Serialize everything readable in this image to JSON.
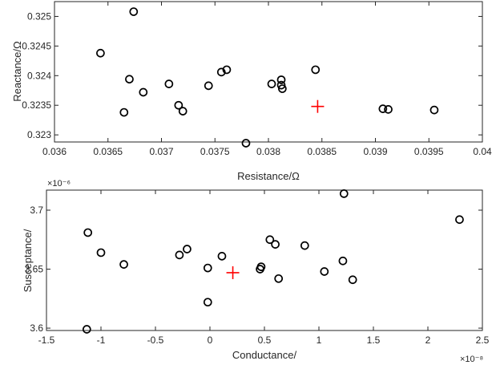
{
  "chart_data": [
    {
      "type": "scatter",
      "xlabel": "Resistance/Ω",
      "ylabel": "Reactance/Ω",
      "xlim": [
        0.036,
        0.04
      ],
      "ylim": [
        0.32288,
        0.32525
      ],
      "x_ticks": [
        "0.036",
        "0.0365",
        "0.037",
        "0.0375",
        "0.038",
        "0.0385",
        "0.039",
        "0.0395",
        "0.04"
      ],
      "y_ticks": [
        "0.323",
        "0.3235",
        "0.324",
        "0.3245",
        "0.325"
      ],
      "series": [
        {
          "marker": "circle",
          "color": "#000000",
          "points": [
            [
              0.03674,
              0.32508
            ],
            [
              0.03643,
              0.32438
            ],
            [
              0.0367,
              0.32394
            ],
            [
              0.03683,
              0.32372
            ],
            [
              0.03707,
              0.32386
            ],
            [
              0.03716,
              0.3235
            ],
            [
              0.0372,
              0.3234
            ],
            [
              0.03665,
              0.32338
            ],
            [
              0.03744,
              0.32383
            ],
            [
              0.03756,
              0.32406
            ],
            [
              0.03761,
              0.3241
            ],
            [
              0.03779,
              0.32286
            ],
            [
              0.03803,
              0.32386
            ],
            [
              0.03812,
              0.32393
            ],
            [
              0.03812,
              0.32384
            ],
            [
              0.03813,
              0.32378
            ],
            [
              0.03844,
              0.3241
            ],
            [
              0.03907,
              0.32344
            ],
            [
              0.03912,
              0.32343
            ],
            [
              0.03955,
              0.32342
            ]
          ]
        },
        {
          "marker": "plus",
          "color": "#ff0000",
          "points": [
            [
              0.03846,
              0.32348
            ]
          ]
        }
      ]
    },
    {
      "type": "scatter",
      "xlabel": "Conductance/",
      "ylabel": "Susceptance/",
      "x_exponent": "×10⁻⁸",
      "y_exponent": "×10⁻⁶",
      "xlim": [
        -1.5,
        2.5
      ],
      "ylim": [
        3.598,
        3.717
      ],
      "x_ticks": [
        "-1.5",
        "-1",
        "-0.5",
        "0",
        "0.5",
        "1",
        "1.5",
        "2",
        "2.5"
      ],
      "y_ticks": [
        "3.6",
        "3.65",
        "3.7"
      ],
      "series": [
        {
          "marker": "circle",
          "color": "#000000",
          "points": [
            [
              -1.12,
              3.681
            ],
            [
              -1.0,
              3.664
            ],
            [
              -0.79,
              3.654
            ],
            [
              -0.28,
              3.662
            ],
            [
              -0.21,
              3.667
            ],
            [
              -0.02,
              3.651
            ],
            [
              -0.02,
              3.622
            ],
            [
              0.11,
              3.661
            ],
            [
              0.46,
              3.65
            ],
            [
              0.47,
              3.652
            ],
            [
              0.55,
              3.675
            ],
            [
              0.6,
              3.671
            ],
            [
              0.63,
              3.642
            ],
            [
              0.87,
              3.67
            ],
            [
              1.05,
              3.648
            ],
            [
              1.22,
              3.657
            ],
            [
              1.31,
              3.641
            ],
            [
              1.23,
              3.714
            ],
            [
              2.29,
              3.692
            ],
            [
              -1.13,
              3.599
            ]
          ]
        },
        {
          "marker": "plus",
          "color": "#ff0000",
          "points": [
            [
              0.21,
              3.647
            ]
          ]
        }
      ]
    }
  ]
}
